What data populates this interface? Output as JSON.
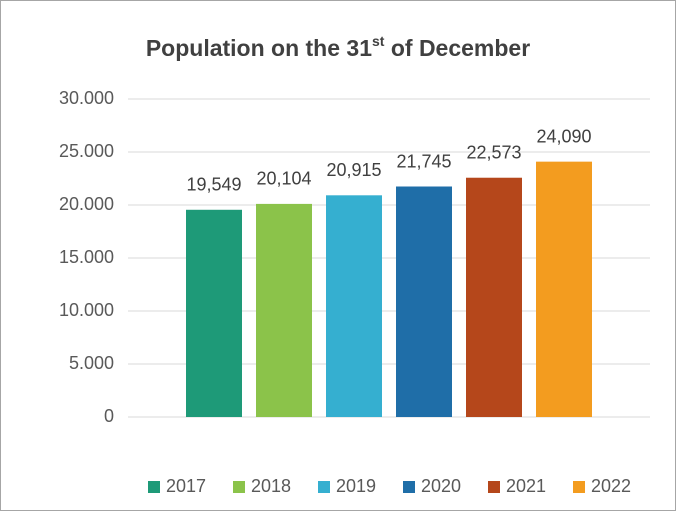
{
  "chart_data": {
    "type": "bar",
    "title": "Population on the 31st of December",
    "categories": [
      null
    ],
    "series": [
      {
        "name": "2017",
        "color": "#1e9a78",
        "values": [
          19549
        ],
        "value_labels": [
          "19,549"
        ]
      },
      {
        "name": "2018",
        "color": "#8bc34a",
        "values": [
          20104
        ],
        "value_labels": [
          "20,104"
        ]
      },
      {
        "name": "2019",
        "color": "#35afd0",
        "values": [
          20915
        ],
        "value_labels": [
          "20,915"
        ]
      },
      {
        "name": "2020",
        "color": "#1f6ea8",
        "values": [
          21745
        ],
        "value_labels": [
          "21,745"
        ]
      },
      {
        "name": "2021",
        "color": "#b5471b",
        "values": [
          22573
        ],
        "value_labels": [
          "22,573"
        ]
      },
      {
        "name": "2022",
        "color": "#f39c1f",
        "values": [
          24090
        ],
        "value_labels": [
          "24,090"
        ]
      }
    ],
    "ylim": [
      0,
      30000
    ],
    "yticks": [
      0,
      {
        "value": 5000,
        "label": "5.000"
      },
      {
        "value": 10000,
        "label": "10.000"
      },
      {
        "value": 15000,
        "label": "15.000"
      },
      {
        "value": 20000,
        "label": "20.000"
      },
      {
        "value": 25000,
        "label": "25.000"
      },
      {
        "value": 30000,
        "label": "30.000"
      }
    ],
    "grid": true,
    "legend": "bottom"
  }
}
